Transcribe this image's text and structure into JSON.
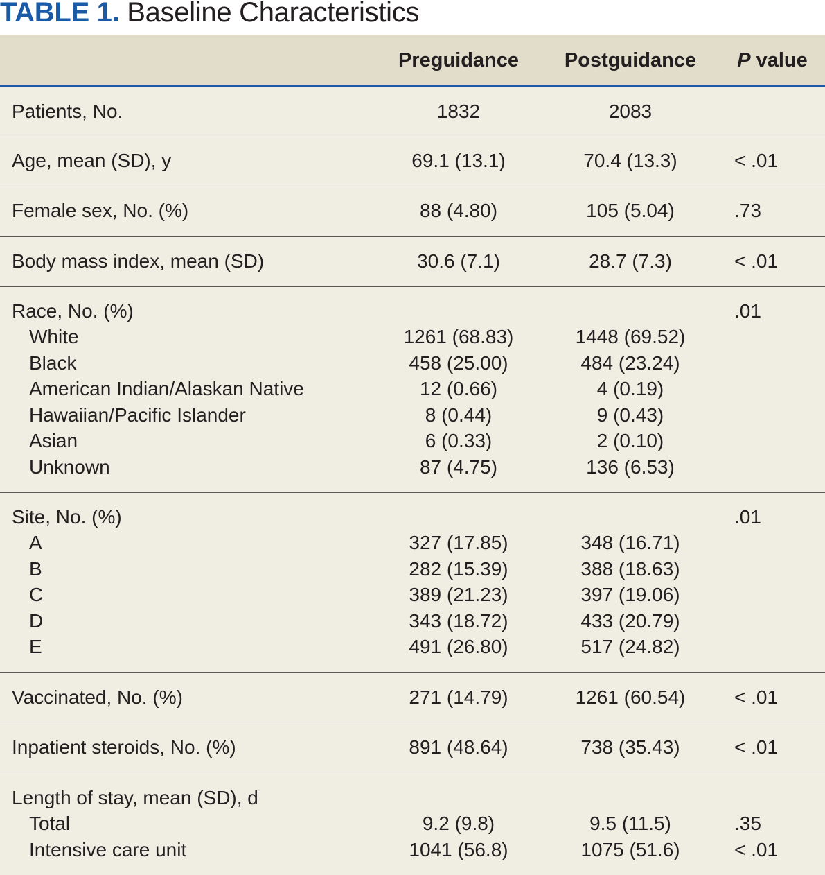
{
  "title": {
    "label": "TABLE 1.",
    "text": "Baseline Characteristics"
  },
  "header": {
    "preguidance": "Preguidance",
    "postguidance": "Postguidance",
    "p_italic": "P",
    "p_rest": " value"
  },
  "rows": [
    {
      "label": "Patients, No.",
      "pre": "1832",
      "post": "2083",
      "p": ""
    },
    {
      "label": "Age, mean (SD), y",
      "pre": "69.1 (13.1)",
      "post": "70.4 (13.3)",
      "p": "< .01"
    },
    {
      "label": "Female sex, No. (%)",
      "pre": "88 (4.80)",
      "post": "105 (5.04)",
      "p": ".73"
    },
    {
      "label": "Body mass index, mean (SD)",
      "pre": "30.6 (7.1)",
      "post": "28.7 (7.3)",
      "p": "< .01"
    },
    {
      "label": "Race, No. (%)",
      "pre": "",
      "post": "",
      "p": ".01",
      "sub": [
        {
          "label": "White",
          "pre": "1261 (68.83)",
          "post": "1448 (69.52)"
        },
        {
          "label": "Black",
          "pre": "458 (25.00)",
          "post": "484 (23.24)"
        },
        {
          "label": "American Indian/Alaskan Native",
          "pre": "12 (0.66)",
          "post": "4 (0.19)"
        },
        {
          "label": "Hawaiian/Pacific Islander",
          "pre": "8 (0.44)",
          "post": "9 (0.43)"
        },
        {
          "label": "Asian",
          "pre": "6 (0.33)",
          "post": "2 (0.10)"
        },
        {
          "label": "Unknown",
          "pre": "87 (4.75)",
          "post": "136 (6.53)"
        }
      ]
    },
    {
      "label": "Site, No. (%)",
      "pre": "",
      "post": "",
      "p": ".01",
      "sub": [
        {
          "label": "A",
          "pre": "327 (17.85)",
          "post": "348 (16.71)"
        },
        {
          "label": "B",
          "pre": "282 (15.39)",
          "post": "388 (18.63)"
        },
        {
          "label": "C",
          "pre": "389 (21.23)",
          "post": "397 (19.06)"
        },
        {
          "label": "D",
          "pre": "343 (18.72)",
          "post": "433 (20.79)"
        },
        {
          "label": "E",
          "pre": "491 (26.80)",
          "post": "517 (24.82)"
        }
      ]
    },
    {
      "label": "Vaccinated, No. (%)",
      "pre": "271 (14.79)",
      "post": "1261 (60.54)",
      "p": "< .01"
    },
    {
      "label": "Inpatient steroids, No. (%)",
      "pre": "891 (48.64)",
      "post": "738 (35.43)",
      "p": "< .01"
    },
    {
      "label": "Length of stay, mean (SD), d",
      "pre": "",
      "post": "",
      "p": "",
      "sub": [
        {
          "label": "Total",
          "pre": "9.2 (9.8)",
          "post": "9.5 (11.5)",
          "p": ".35"
        },
        {
          "label": "Intensive care unit",
          "pre": "1041 (56.8)",
          "post": "1075 (51.6)",
          "p": "< .01"
        }
      ]
    }
  ]
}
